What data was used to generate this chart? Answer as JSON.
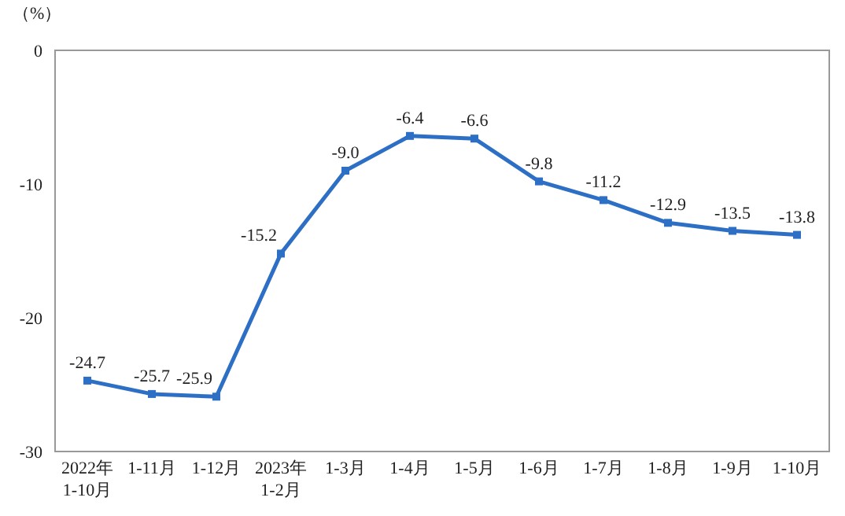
{
  "chart_data": {
    "type": "line",
    "ylabel": "（%）",
    "categories": [
      "2022年\n1-10月",
      "1-11月",
      "1-12月",
      "2023年\n1-2月",
      "1-3月",
      "1-4月",
      "1-5月",
      "1-6月",
      "1-7月",
      "1-8月",
      "1-9月",
      "1-10月"
    ],
    "series": [
      {
        "color": "#2e6fc6",
        "values": [
          -24.7,
          -25.7,
          -25.9,
          -15.2,
          -9.0,
          -6.4,
          -6.6,
          -9.8,
          -11.2,
          -12.9,
          -13.5,
          -13.8
        ]
      }
    ],
    "ylim": [
      -30,
      0
    ],
    "yticks": [
      -30,
      -20,
      -10,
      0
    ],
    "marker": "square",
    "value_labels": [
      "-24.7",
      "-25.7",
      "-25.9",
      "-15.2",
      "-9.0",
      "-6.4",
      "-6.6",
      "-9.8",
      "-11.2",
      "-12.9",
      "-13.5",
      "-13.8"
    ],
    "grid": false
  }
}
